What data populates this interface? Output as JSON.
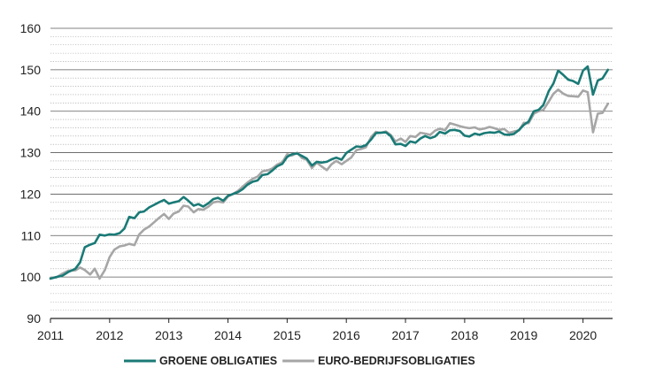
{
  "chart_data": {
    "type": "line",
    "title": "",
    "xlabel": "",
    "ylabel": "",
    "xlim": [
      2011,
      2020.5
    ],
    "ylim": [
      90,
      160
    ],
    "y_ticks": [
      "90",
      "100",
      "110",
      "120",
      "130",
      "140",
      "150",
      "160"
    ],
    "x_ticks": [
      "2011",
      "2012",
      "2013",
      "2014",
      "2015",
      "2016",
      "2017",
      "2018",
      "2019",
      "2020"
    ],
    "grid": "horizontal",
    "legend_position": "bottom-center",
    "series": [
      {
        "name": "GROENE OBLIGATIES",
        "color": "#1a7a76",
        "points": [
          [
            2011.0,
            99.6
          ],
          [
            2011.1,
            100.0
          ],
          [
            2011.2,
            100.3
          ],
          [
            2011.3,
            101.2
          ],
          [
            2011.42,
            102.0
          ],
          [
            2011.5,
            103.5
          ],
          [
            2011.58,
            107.2
          ],
          [
            2011.67,
            107.8
          ],
          [
            2011.75,
            108.2
          ],
          [
            2011.83,
            110.2
          ],
          [
            2011.92,
            110.0
          ],
          [
            2012.0,
            110.3
          ],
          [
            2012.08,
            110.2
          ],
          [
            2012.17,
            110.6
          ],
          [
            2012.25,
            111.7
          ],
          [
            2012.33,
            114.5
          ],
          [
            2012.42,
            114.2
          ],
          [
            2012.5,
            115.6
          ],
          [
            2012.58,
            115.8
          ],
          [
            2012.67,
            116.8
          ],
          [
            2012.75,
            117.4
          ],
          [
            2012.83,
            118.0
          ],
          [
            2012.92,
            118.6
          ],
          [
            2013.0,
            117.7
          ],
          [
            2013.08,
            118.0
          ],
          [
            2013.17,
            118.3
          ],
          [
            2013.25,
            119.3
          ],
          [
            2013.33,
            118.4
          ],
          [
            2013.42,
            117.2
          ],
          [
            2013.5,
            117.6
          ],
          [
            2013.58,
            117.0
          ],
          [
            2013.67,
            117.8
          ],
          [
            2013.75,
            118.8
          ],
          [
            2013.83,
            119.1
          ],
          [
            2013.92,
            118.4
          ],
          [
            2014.0,
            119.6
          ],
          [
            2014.08,
            120.0
          ],
          [
            2014.17,
            120.5
          ],
          [
            2014.25,
            121.2
          ],
          [
            2014.33,
            122.3
          ],
          [
            2014.42,
            123.0
          ],
          [
            2014.5,
            123.3
          ],
          [
            2014.58,
            124.6
          ],
          [
            2014.67,
            124.8
          ],
          [
            2014.75,
            125.7
          ],
          [
            2014.83,
            126.7
          ],
          [
            2014.92,
            127.3
          ],
          [
            2015.0,
            129.0
          ],
          [
            2015.08,
            129.6
          ],
          [
            2015.17,
            129.8
          ],
          [
            2015.25,
            129.2
          ],
          [
            2015.33,
            128.6
          ],
          [
            2015.42,
            126.9
          ],
          [
            2015.5,
            127.8
          ],
          [
            2015.58,
            127.6
          ],
          [
            2015.67,
            127.8
          ],
          [
            2015.75,
            128.4
          ],
          [
            2015.83,
            128.8
          ],
          [
            2015.92,
            128.3
          ],
          [
            2016.0,
            129.9
          ],
          [
            2016.08,
            130.7
          ],
          [
            2016.17,
            131.5
          ],
          [
            2016.25,
            131.4
          ],
          [
            2016.33,
            131.8
          ],
          [
            2016.42,
            133.2
          ],
          [
            2016.5,
            134.7
          ],
          [
            2016.58,
            134.8
          ],
          [
            2016.67,
            134.9
          ],
          [
            2016.75,
            134.0
          ],
          [
            2016.83,
            132.0
          ],
          [
            2016.92,
            132.1
          ],
          [
            2017.0,
            131.6
          ],
          [
            2017.08,
            132.7
          ],
          [
            2017.17,
            132.4
          ],
          [
            2017.25,
            133.4
          ],
          [
            2017.33,
            134.0
          ],
          [
            2017.42,
            133.5
          ],
          [
            2017.5,
            133.9
          ],
          [
            2017.58,
            135.0
          ],
          [
            2017.67,
            134.6
          ],
          [
            2017.75,
            135.4
          ],
          [
            2017.83,
            135.5
          ],
          [
            2017.92,
            135.2
          ],
          [
            2018.0,
            134.1
          ],
          [
            2018.08,
            133.9
          ],
          [
            2018.17,
            134.6
          ],
          [
            2018.25,
            134.3
          ],
          [
            2018.33,
            134.7
          ],
          [
            2018.42,
            134.9
          ],
          [
            2018.5,
            134.8
          ],
          [
            2018.58,
            135.1
          ],
          [
            2018.67,
            134.4
          ],
          [
            2018.75,
            134.3
          ],
          [
            2018.83,
            134.5
          ],
          [
            2018.92,
            135.5
          ],
          [
            2019.0,
            136.7
          ],
          [
            2019.08,
            137.5
          ],
          [
            2019.17,
            140.0
          ],
          [
            2019.25,
            140.3
          ],
          [
            2019.33,
            141.5
          ],
          [
            2019.42,
            144.8
          ],
          [
            2019.5,
            146.7
          ],
          [
            2019.58,
            149.8
          ],
          [
            2019.67,
            148.7
          ],
          [
            2019.75,
            147.6
          ],
          [
            2019.83,
            147.3
          ],
          [
            2019.92,
            146.6
          ],
          [
            2020.0,
            149.8
          ],
          [
            2020.08,
            150.8
          ],
          [
            2020.17,
            144.0
          ],
          [
            2020.25,
            147.4
          ],
          [
            2020.33,
            147.9
          ],
          [
            2020.42,
            150.0
          ]
        ]
      },
      {
        "name": "EURO-BEDRIJFSOBLIGATIES",
        "color": "#a6a6a6",
        "points": [
          [
            2011.0,
            99.8
          ],
          [
            2011.1,
            99.9
          ],
          [
            2011.2,
            100.8
          ],
          [
            2011.3,
            101.5
          ],
          [
            2011.42,
            101.6
          ],
          [
            2011.5,
            102.3
          ],
          [
            2011.58,
            101.7
          ],
          [
            2011.67,
            100.6
          ],
          [
            2011.75,
            102.0
          ],
          [
            2011.83,
            99.6
          ],
          [
            2011.92,
            101.7
          ],
          [
            2012.0,
            104.8
          ],
          [
            2012.08,
            106.6
          ],
          [
            2012.17,
            107.4
          ],
          [
            2012.25,
            107.6
          ],
          [
            2012.33,
            108.0
          ],
          [
            2012.42,
            107.7
          ],
          [
            2012.5,
            110.3
          ],
          [
            2012.58,
            111.4
          ],
          [
            2012.67,
            112.2
          ],
          [
            2012.75,
            113.2
          ],
          [
            2012.83,
            114.2
          ],
          [
            2012.92,
            115.2
          ],
          [
            2013.0,
            114.0
          ],
          [
            2013.08,
            115.3
          ],
          [
            2013.17,
            115.8
          ],
          [
            2013.25,
            117.2
          ],
          [
            2013.33,
            117.0
          ],
          [
            2013.42,
            115.6
          ],
          [
            2013.5,
            116.4
          ],
          [
            2013.58,
            116.2
          ],
          [
            2013.67,
            117.0
          ],
          [
            2013.75,
            118.0
          ],
          [
            2013.83,
            118.2
          ],
          [
            2013.92,
            118.0
          ],
          [
            2014.0,
            119.4
          ],
          [
            2014.08,
            120.0
          ],
          [
            2014.17,
            120.8
          ],
          [
            2014.25,
            121.8
          ],
          [
            2014.33,
            122.8
          ],
          [
            2014.42,
            123.7
          ],
          [
            2014.5,
            124.2
          ],
          [
            2014.58,
            125.5
          ],
          [
            2014.67,
            125.7
          ],
          [
            2014.75,
            126.2
          ],
          [
            2014.83,
            127.1
          ],
          [
            2014.92,
            127.7
          ],
          [
            2015.0,
            129.6
          ],
          [
            2015.08,
            129.3
          ],
          [
            2015.17,
            130.0
          ],
          [
            2015.25,
            128.7
          ],
          [
            2015.33,
            128.3
          ],
          [
            2015.42,
            126.3
          ],
          [
            2015.5,
            127.6
          ],
          [
            2015.58,
            126.7
          ],
          [
            2015.67,
            125.8
          ],
          [
            2015.75,
            127.2
          ],
          [
            2015.83,
            128.0
          ],
          [
            2015.92,
            127.2
          ],
          [
            2016.0,
            128.0
          ],
          [
            2016.08,
            128.8
          ],
          [
            2016.17,
            130.6
          ],
          [
            2016.25,
            130.9
          ],
          [
            2016.33,
            131.3
          ],
          [
            2016.42,
            133.8
          ],
          [
            2016.5,
            135.0
          ],
          [
            2016.58,
            134.8
          ],
          [
            2016.67,
            135.1
          ],
          [
            2016.75,
            134.3
          ],
          [
            2016.83,
            132.7
          ],
          [
            2016.92,
            133.4
          ],
          [
            2017.0,
            132.6
          ],
          [
            2017.08,
            134.0
          ],
          [
            2017.17,
            133.8
          ],
          [
            2017.25,
            134.8
          ],
          [
            2017.33,
            134.6
          ],
          [
            2017.42,
            134.3
          ],
          [
            2017.5,
            135.3
          ],
          [
            2017.58,
            135.8
          ],
          [
            2017.67,
            135.4
          ],
          [
            2017.75,
            137.1
          ],
          [
            2017.83,
            136.8
          ],
          [
            2017.92,
            136.4
          ],
          [
            2018.0,
            136.1
          ],
          [
            2018.08,
            135.9
          ],
          [
            2018.17,
            136.1
          ],
          [
            2018.25,
            135.6
          ],
          [
            2018.33,
            135.8
          ],
          [
            2018.42,
            136.2
          ],
          [
            2018.5,
            135.9
          ],
          [
            2018.58,
            135.5
          ],
          [
            2018.67,
            135.7
          ],
          [
            2018.75,
            134.8
          ],
          [
            2018.83,
            135.1
          ],
          [
            2018.92,
            135.4
          ],
          [
            2019.0,
            137.2
          ],
          [
            2019.08,
            137.1
          ],
          [
            2019.17,
            139.4
          ],
          [
            2019.25,
            140.0
          ],
          [
            2019.33,
            140.3
          ],
          [
            2019.42,
            142.3
          ],
          [
            2019.5,
            144.2
          ],
          [
            2019.58,
            145.2
          ],
          [
            2019.67,
            144.2
          ],
          [
            2019.75,
            143.7
          ],
          [
            2019.83,
            143.6
          ],
          [
            2019.92,
            143.5
          ],
          [
            2020.0,
            145.0
          ],
          [
            2020.08,
            144.6
          ],
          [
            2020.17,
            134.9
          ],
          [
            2020.25,
            139.4
          ],
          [
            2020.33,
            139.6
          ],
          [
            2020.42,
            141.8
          ]
        ]
      }
    ]
  }
}
